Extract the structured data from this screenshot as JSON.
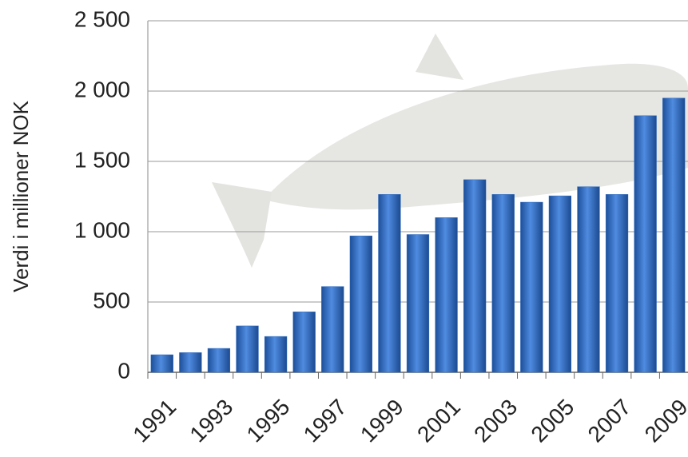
{
  "chart_data": {
    "type": "bar",
    "y_label": "Verdi i millioner NOK",
    "categories": [
      "1991",
      null,
      "1993",
      null,
      "1995",
      null,
      "1997",
      null,
      "1999",
      null,
      "2001",
      null,
      "2003",
      null,
      "2005",
      null,
      "2007",
      null,
      "2009"
    ],
    "values": [
      125,
      140,
      170,
      330,
      255,
      430,
      610,
      970,
      1265,
      980,
      1100,
      1370,
      1265,
      1210,
      1255,
      1320,
      1265,
      1825,
      1950
    ],
    "color": "#2f6bbf",
    "ylim": [
      0,
      2500
    ],
    "yticks": [
      0,
      500,
      {
        "value": 1000,
        "label": "1 000"
      },
      {
        "value": 1500,
        "label": "1 500"
      },
      {
        "value": 2000,
        "label": "2 000"
      },
      {
        "value": 2500,
        "label": "2 500"
      }
    ],
    "grid": true
  }
}
